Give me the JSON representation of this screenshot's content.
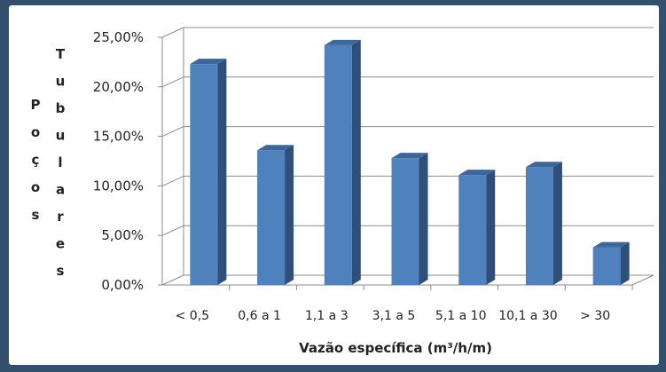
{
  "chart_data": {
    "type": "bar",
    "categories": [
      "< 0,5",
      "0,6 a 1",
      "1,1 a 3",
      "3,1 a 5",
      "5,1 a 10",
      "10,1 a 30",
      "> 30"
    ],
    "values": [
      22.3,
      13.6,
      24.2,
      12.8,
      11.1,
      11.9,
      3.8
    ],
    "ylim": [
      0,
      25
    ],
    "yticks": [
      "0,00%",
      "5,00%",
      "10,00%",
      "15,00%",
      "20,00%",
      "25,00%"
    ],
    "xlabel": "Vazão específica (m³/h/m)",
    "ylabel_left": "Poços",
    "ylabel_right": "Tubulares",
    "bar_color": "#4f81bd",
    "bar_side_color": "#2f4f7a",
    "bar_top_color": "#3d6699",
    "grid": true
  }
}
